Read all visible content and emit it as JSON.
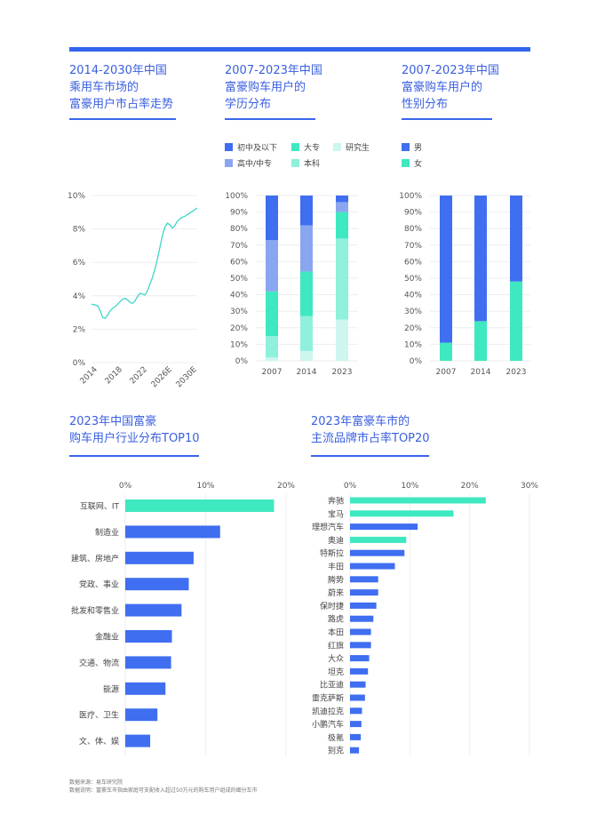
{
  "colors": {
    "blue": "#3f6ef0",
    "light_blue": "#8ba6f0",
    "teal": "#3ee8c0",
    "light_teal": "#8ff0dc",
    "pale_teal": "#cdf6ee",
    "line": "#3dd6c9",
    "accent": "#3366ee"
  },
  "titles": {
    "t1": "2014-2030年中国\n乘用车市场的\n富豪用户市占率走势",
    "t2": "2007-2023年中国\n富豪购车用户的\n学历分布",
    "t3": "2007-2023年中国\n富豪购车用户的\n性别分布",
    "t4": "2023年中国富豪\n购车用户行业分布TOP10",
    "t5": "2023年富豪车市的\n主流品牌市占率TOP20"
  },
  "legend_edu": [
    "初中及以下",
    "大专",
    "研究生",
    "高中/中专",
    "本科"
  ],
  "legend_gender": [
    "男",
    "女"
  ],
  "footnotes": {
    "source": "数据来源：易车研究院",
    "note": "数据说明：富豪车市指由家庭可支配收入超过50万元的购车用户组成的细分车市"
  },
  "chart_data": [
    {
      "type": "line",
      "title": "2014-2030年中国乘用车市场的富豪用户市占率走势",
      "y_ticks": [
        "0%",
        "2%",
        "4%",
        "6%",
        "8%",
        "10%"
      ],
      "ylim": [
        0,
        10
      ],
      "x_ticks": [
        "2014",
        "2018",
        "2022",
        "2026E",
        "2030E"
      ],
      "xlim": [
        2013.6,
        2030.6
      ],
      "series": [
        {
          "x": [
            2013.6,
            2014.2,
            2014.6,
            2015.0,
            2015.4,
            2015.8,
            2016.2,
            2016.6,
            2017.0,
            2017.4,
            2017.8,
            2018.2,
            2018.6,
            2019.0,
            2019.4,
            2019.8,
            2020.2,
            2020.6,
            2021.0,
            2021.4,
            2021.8,
            2022.2,
            2022.6,
            2023.0,
            2023.4,
            2023.8,
            2024.2,
            2024.6,
            2025.0,
            2025.4,
            2025.8,
            2026.2,
            2026.6,
            2027.0,
            2027.4,
            2027.8,
            2028.2,
            2028.6,
            2029.0,
            2029.4,
            2029.8,
            2030.2,
            2030.6
          ],
          "y": [
            3.5,
            3.45,
            3.4,
            3.1,
            2.7,
            2.65,
            2.85,
            3.1,
            3.25,
            3.35,
            3.5,
            3.65,
            3.8,
            3.85,
            3.75,
            3.6,
            3.55,
            3.7,
            3.95,
            4.15,
            4.1,
            4.05,
            4.3,
            4.7,
            5.1,
            5.6,
            6.2,
            6.9,
            7.6,
            8.1,
            8.35,
            8.25,
            8.05,
            8.2,
            8.45,
            8.6,
            8.7,
            8.75,
            8.85,
            8.95,
            9.05,
            9.15,
            9.25
          ]
        }
      ]
    },
    {
      "type": "bar",
      "stacked": true,
      "title": "2007-2023年中国富豪购车用户的学历分布",
      "categories": [
        "2007",
        "2014",
        "2023"
      ],
      "y_ticks": [
        "0%",
        "10%",
        "20%",
        "30%",
        "40%",
        "50%",
        "60%",
        "70%",
        "80%",
        "90%",
        "100%"
      ],
      "ylim": [
        0,
        100
      ],
      "series": [
        {
          "name": "研究生",
          "values": [
            2,
            6,
            25
          ]
        },
        {
          "name": "本科",
          "values": [
            13,
            21,
            49
          ]
        },
        {
          "name": "大专",
          "values": [
            27,
            27,
            16
          ]
        },
        {
          "name": "高中/中专",
          "values": [
            31,
            28,
            6
          ]
        },
        {
          "name": "初中及以下",
          "values": [
            27,
            18,
            4
          ]
        }
      ]
    },
    {
      "type": "bar",
      "stacked": true,
      "title": "2007-2023年中国富豪购车用户的性别分布",
      "categories": [
        "2007",
        "2014",
        "2023"
      ],
      "y_ticks": [
        "0%",
        "10%",
        "20%",
        "30%",
        "40%",
        "50%",
        "60%",
        "70%",
        "80%",
        "90%",
        "100%"
      ],
      "ylim": [
        0,
        100
      ],
      "series": [
        {
          "name": "女",
          "values": [
            11,
            24,
            48
          ]
        },
        {
          "name": "男",
          "values": [
            89,
            76,
            52
          ]
        }
      ]
    },
    {
      "type": "bar",
      "orientation": "horizontal",
      "title": "2023年中国富豪购车用户行业分布TOP10",
      "categories": [
        "互联网、IT",
        "制造业",
        "建筑、房地产",
        "党政、事业",
        "批发和零售业",
        "金融业",
        "交通、物流",
        "能源",
        "医疗、卫生",
        "文、体、娱"
      ],
      "values": [
        18.5,
        11.8,
        8.5,
        7.9,
        7.0,
        5.8,
        5.7,
        5.0,
        4.0,
        3.1
      ],
      "highlight": [
        true,
        false,
        false,
        false,
        false,
        false,
        false,
        false,
        false,
        false
      ],
      "x_ticks": [
        "0%",
        "10%",
        "20%"
      ],
      "xlim": [
        0,
        20
      ]
    },
    {
      "type": "bar",
      "orientation": "horizontal",
      "title": "2023年富豪车市的主流品牌市占率TOP20",
      "categories": [
        "奔驰",
        "宝马",
        "理想汽车",
        "奥迪",
        "特斯拉",
        "丰田",
        "腾势",
        "蔚来",
        "保时捷",
        "路虎",
        "本田",
        "红旗",
        "大众",
        "坦克",
        "比亚迪",
        "雷克萨斯",
        "凯迪拉克",
        "小鹏汽车",
        "极氪",
        "别克"
      ],
      "values": [
        22.7,
        17.3,
        11.3,
        9.4,
        9.1,
        7.5,
        4.7,
        4.7,
        4.4,
        3.9,
        3.5,
        3.5,
        3.2,
        3.0,
        2.6,
        2.5,
        2.0,
        1.9,
        1.8,
        1.5
      ],
      "highlight": [
        true,
        true,
        false,
        true,
        false,
        false,
        false,
        false,
        false,
        false,
        false,
        false,
        false,
        false,
        false,
        false,
        false,
        false,
        false,
        false
      ],
      "x_ticks": [
        "0%",
        "10%",
        "20%",
        "30%"
      ],
      "xlim": [
        0,
        30
      ]
    }
  ]
}
